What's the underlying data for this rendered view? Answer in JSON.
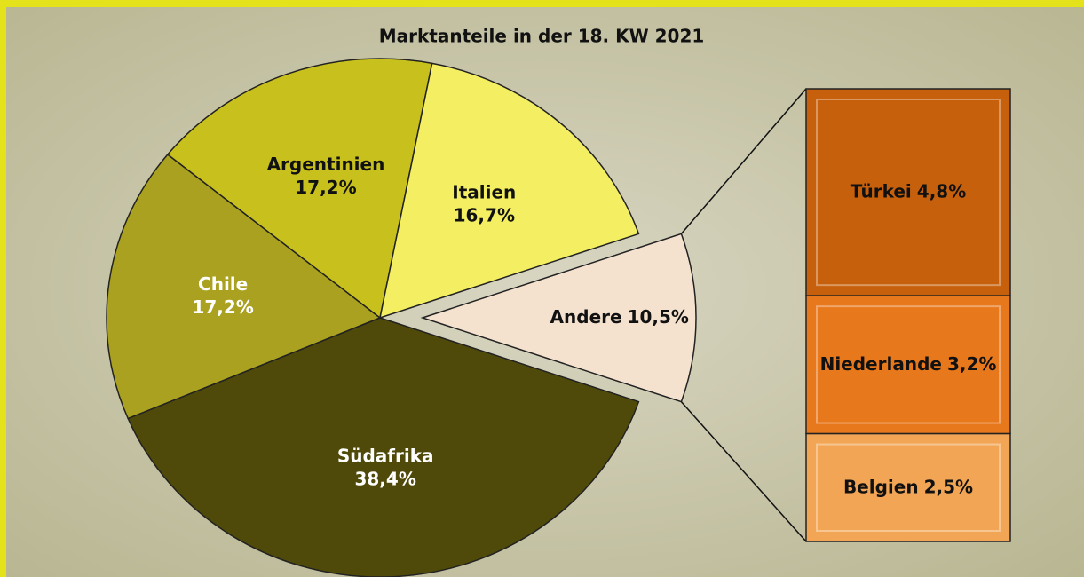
{
  "chart_data": {
    "type": "pie",
    "title": "Marktanteile in der 18. KW 2021",
    "categories": [
      "Südafrika",
      "Chile",
      "Argentinien",
      "Italien",
      "Andere"
    ],
    "values": [
      38.4,
      17.2,
      17.2,
      16.7,
      10.5
    ],
    "value_labels": [
      "38,4%",
      "17,2%",
      "17,2%",
      "16,7%",
      "10,5%"
    ],
    "colors": [
      "#4f4a0a",
      "#a9a11f",
      "#c8c01c",
      "#f3ee62",
      "#f4e2cf"
    ],
    "breakdown": {
      "type": "bar",
      "categories": [
        "Türkei",
        "Niederlande",
        "Belgien"
      ],
      "values": [
        4.8,
        3.2,
        2.5
      ],
      "value_labels": [
        "4,8%",
        "3,2%",
        "2,5%"
      ],
      "colors": [
        "#c6600c",
        "#e8781c",
        "#f2a655"
      ]
    }
  }
}
